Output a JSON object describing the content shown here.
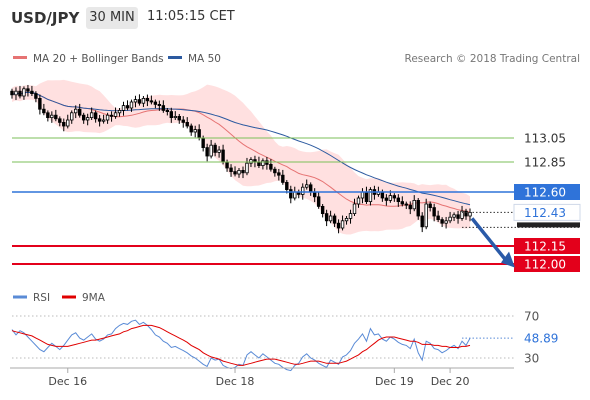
{
  "header": {
    "symbol": "USD/JPY",
    "interval": "30 MIN",
    "time": "11:05:15 CET"
  },
  "legend": {
    "ma20_label": "MA 20 + Bollinger Bands",
    "ma50_label": "MA 50",
    "credit": "Research © 2018 Trading Central"
  },
  "colors": {
    "resistance": "#7bbf59",
    "pivot": "#2f73d9",
    "support": "#e3001b",
    "candle": "#000000",
    "ma20": "#e67373",
    "ma50": "#2c5aa0",
    "bands": "#ffd6d6",
    "rsi": "#5a8bd6",
    "rsi_ma": "#e00000"
  },
  "chart_data": [
    {
      "type": "candlestick",
      "x_tick_labels": [
        "Dec 16",
        "Dec 18",
        "Dec 19",
        "Dec 20"
      ],
      "ylim": [
        111.85,
        113.6
      ],
      "levels": [
        {
          "value": 113.05,
          "label": "113.05",
          "kind": "resistance"
        },
        {
          "value": 112.85,
          "label": "112.85",
          "kind": "resistance"
        },
        {
          "value": 112.6,
          "label": "112.60",
          "kind": "pivot"
        },
        {
          "value": 112.15,
          "label": "112.15",
          "kind": "support"
        },
        {
          "value": 112.0,
          "label": "112.00",
          "kind": "support"
        }
      ],
      "current_price": {
        "value": 112.43,
        "label": "112.43"
      },
      "overlays": [
        {
          "name": "MA 20 + Bollinger Bands"
        },
        {
          "name": "MA 50"
        }
      ],
      "close": [
        113.41,
        113.44,
        113.4,
        113.46,
        113.44,
        113.42,
        113.38,
        113.29,
        113.26,
        113.22,
        113.24,
        113.21,
        113.18,
        113.15,
        113.2,
        113.26,
        113.29,
        113.24,
        113.2,
        113.22,
        113.26,
        113.21,
        113.19,
        113.2,
        113.24,
        113.23,
        113.26,
        113.28,
        113.32,
        113.3,
        113.35,
        113.37,
        113.34,
        113.38,
        113.36,
        113.35,
        113.33,
        113.32,
        113.28,
        113.27,
        113.22,
        113.23,
        113.2,
        113.18,
        113.15,
        113.1,
        113.12,
        113.05,
        112.97,
        112.9,
        112.99,
        112.93,
        112.95,
        112.85,
        112.8,
        112.77,
        112.75,
        112.78,
        112.76,
        112.84,
        112.87,
        112.85,
        112.82,
        112.86,
        112.83,
        112.79,
        112.76,
        112.74,
        112.68,
        112.62,
        112.55,
        112.6,
        112.58,
        112.64,
        112.66,
        112.6,
        112.56,
        112.48,
        112.42,
        112.36,
        112.4,
        112.34,
        112.3,
        112.36,
        112.38,
        112.42,
        112.5,
        112.55,
        112.6,
        112.52,
        112.62,
        112.58,
        112.6,
        112.55,
        112.53,
        112.57,
        112.55,
        112.52,
        112.5,
        112.49,
        112.46,
        112.53,
        112.4,
        112.31,
        112.5,
        112.47,
        112.4,
        112.37,
        112.34,
        112.36,
        112.39,
        112.41,
        112.38,
        112.44,
        112.4,
        112.43
      ]
    },
    {
      "type": "line",
      "legend": [
        "RSI",
        "9MA"
      ],
      "y_tick_labels": [
        "70",
        "30"
      ],
      "ylim": [
        0,
        100
      ],
      "current_value": 48.89,
      "current_label": "48.89",
      "series": [
        {
          "name": "RSI",
          "values": [
            57,
            52,
            56,
            54,
            50,
            46,
            42,
            38,
            36,
            40,
            44,
            41,
            38,
            42,
            47,
            52,
            54,
            49,
            47,
            50,
            53,
            48,
            46,
            48,
            52,
            53,
            58,
            61,
            63,
            62,
            65,
            66,
            62,
            64,
            61,
            57,
            52,
            50,
            46,
            44,
            40,
            41,
            39,
            37,
            35,
            32,
            30,
            27,
            24,
            22,
            30,
            28,
            29,
            23,
            21,
            20,
            21,
            24,
            23,
            33,
            36,
            33,
            30,
            34,
            31,
            28,
            25,
            24,
            21,
            19,
            18,
            23,
            25,
            31,
            34,
            30,
            28,
            25,
            23,
            21,
            28,
            26,
            24,
            31,
            33,
            37,
            44,
            48,
            53,
            46,
            58,
            52,
            53,
            48,
            46,
            50,
            48,
            45,
            43,
            42,
            39,
            48,
            35,
            28,
            46,
            44,
            39,
            38,
            35,
            37,
            40,
            42,
            39,
            46,
            42,
            48.89
          ]
        },
        {
          "name": "9MA",
          "values": [
            56,
            55,
            54,
            53,
            52,
            51,
            49,
            47,
            45,
            43,
            42,
            41,
            41,
            41,
            41,
            42,
            43,
            44,
            45,
            46,
            47,
            47,
            48,
            49,
            50,
            51,
            52,
            53,
            55,
            56,
            58,
            59,
            60,
            61,
            61,
            61,
            60,
            59,
            57,
            55,
            53,
            51,
            49,
            47,
            45,
            42,
            40,
            38,
            35,
            33,
            31,
            30,
            29,
            27,
            26,
            25,
            24,
            23,
            23,
            24,
            25,
            26,
            27,
            28,
            29,
            29,
            29,
            28,
            27,
            26,
            25,
            24,
            24,
            25,
            26,
            27,
            27,
            27,
            26,
            25,
            25,
            25,
            25,
            26,
            27,
            29,
            31,
            33,
            36,
            38,
            41,
            44,
            47,
            49,
            50,
            50,
            50,
            49,
            48,
            47,
            46,
            46,
            45,
            43,
            43,
            43,
            42,
            42,
            41,
            41,
            40,
            40,
            40,
            41,
            41,
            42
          ]
        }
      ]
    }
  ]
}
